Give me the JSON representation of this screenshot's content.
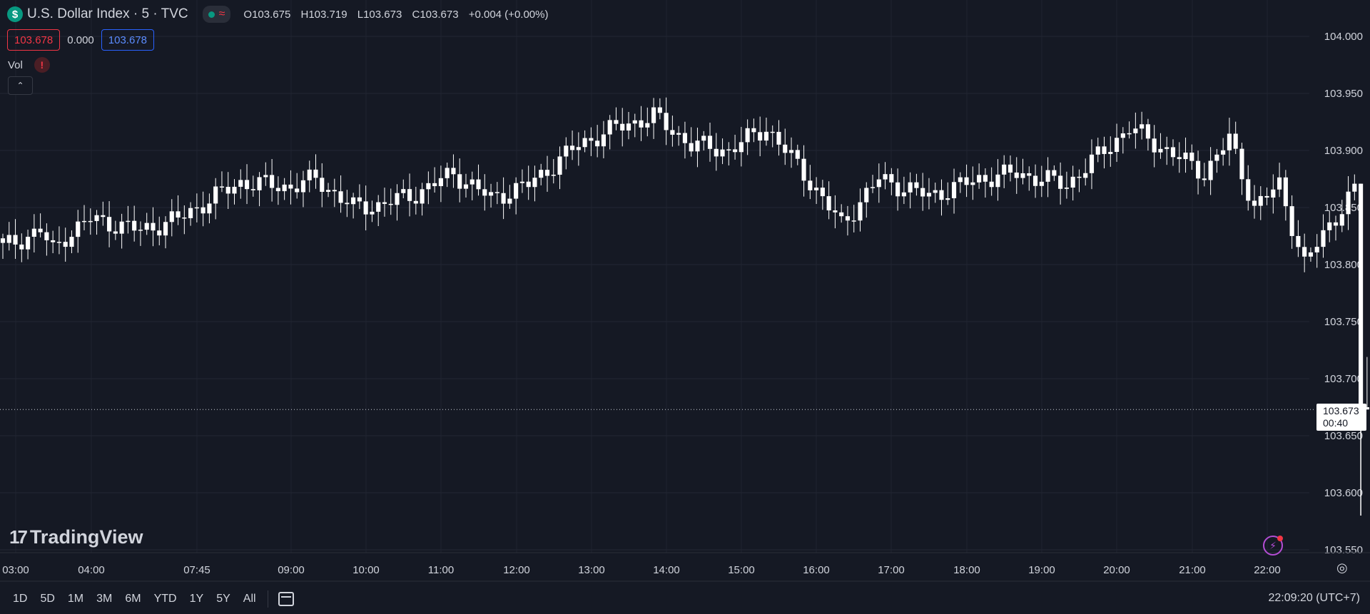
{
  "header": {
    "symbol_icon": "$",
    "title": "U.S. Dollar Index · 5 · TVC",
    "status_icon": "market-open-dot",
    "wave_icon": "≈",
    "ohlc": {
      "o_label": "O",
      "o": "103.675",
      "h_label": "H",
      "h": "103.719",
      "l_label": "L",
      "l": "103.673",
      "c_label": "C",
      "c": "103.673",
      "change": "+0.004 (+0.00%)"
    },
    "sell_price": "103.678",
    "spread": "0.000",
    "buy_price": "103.678",
    "vol_label": "Vol",
    "vol_warning": "!"
  },
  "watermark": {
    "brand": "TradingView"
  },
  "price_tag": {
    "price": "103.673",
    "countdown": "00:40"
  },
  "bottom_bar": {
    "ranges": [
      "1D",
      "5D",
      "1M",
      "3M",
      "6M",
      "YTD",
      "1Y",
      "5Y",
      "All"
    ],
    "clock": "22:09:20 (UTC+7)"
  },
  "colors": {
    "background": "#151924",
    "candle": "#ffffff",
    "grid": "#232733",
    "text": "#d1d4dc",
    "sell": "#f23645",
    "buy": "#2962ff"
  },
  "chart_data": {
    "type": "candlestick",
    "title": "U.S. Dollar Index · 5 · TVC",
    "y_ticks": [
      "104.000",
      "103.950",
      "103.900",
      "103.850",
      "103.800",
      "103.750",
      "103.700",
      "103.650",
      "103.600",
      "103.550"
    ],
    "ylim": [
      103.545,
      104.02
    ],
    "x_ticks": [
      "03:00",
      "04:00",
      "07:45",
      "09:00",
      "10:00",
      "11:00",
      "12:00",
      "13:00",
      "14:00",
      "15:00",
      "16:00",
      "17:00",
      "18:00",
      "19:00",
      "20:00",
      "21:00",
      "22:00"
    ],
    "last_price": 103.673,
    "grid": true,
    "anchors": [
      [
        0,
        103.815
      ],
      [
        6,
        103.83
      ],
      [
        8,
        103.812
      ],
      [
        10,
        103.825
      ],
      [
        14,
        103.84
      ],
      [
        22,
        103.83
      ],
      [
        28,
        103.84
      ],
      [
        34,
        103.86
      ],
      [
        38,
        103.872
      ],
      [
        46,
        103.868
      ],
      [
        50,
        103.875
      ],
      [
        56,
        103.85
      ],
      [
        60,
        103.852
      ],
      [
        66,
        103.862
      ],
      [
        72,
        103.88
      ],
      [
        78,
        103.858
      ],
      [
        84,
        103.87
      ],
      [
        92,
        103.905
      ],
      [
        98,
        103.92
      ],
      [
        104,
        103.93
      ],
      [
        110,
        103.905
      ],
      [
        116,
        103.9
      ],
      [
        122,
        103.92
      ],
      [
        128,
        103.88
      ],
      [
        134,
        103.835
      ],
      [
        140,
        103.875
      ],
      [
        148,
        103.86
      ],
      [
        156,
        103.875
      ],
      [
        162,
        103.88
      ],
      [
        170,
        103.87
      ],
      [
        176,
        103.9
      ],
      [
        180,
        103.92
      ],
      [
        186,
        103.9
      ],
      [
        192,
        103.88
      ],
      [
        196,
        103.91
      ],
      [
        200,
        103.85
      ],
      [
        204,
        103.87
      ],
      [
        208,
        103.8
      ],
      [
        212,
        103.835
      ],
      [
        216,
        103.865
      ],
      [
        217,
        103.673
      ]
    ],
    "final_candle": {
      "o": 103.675,
      "h": 103.719,
      "l": 103.673,
      "c": 103.673
    }
  }
}
